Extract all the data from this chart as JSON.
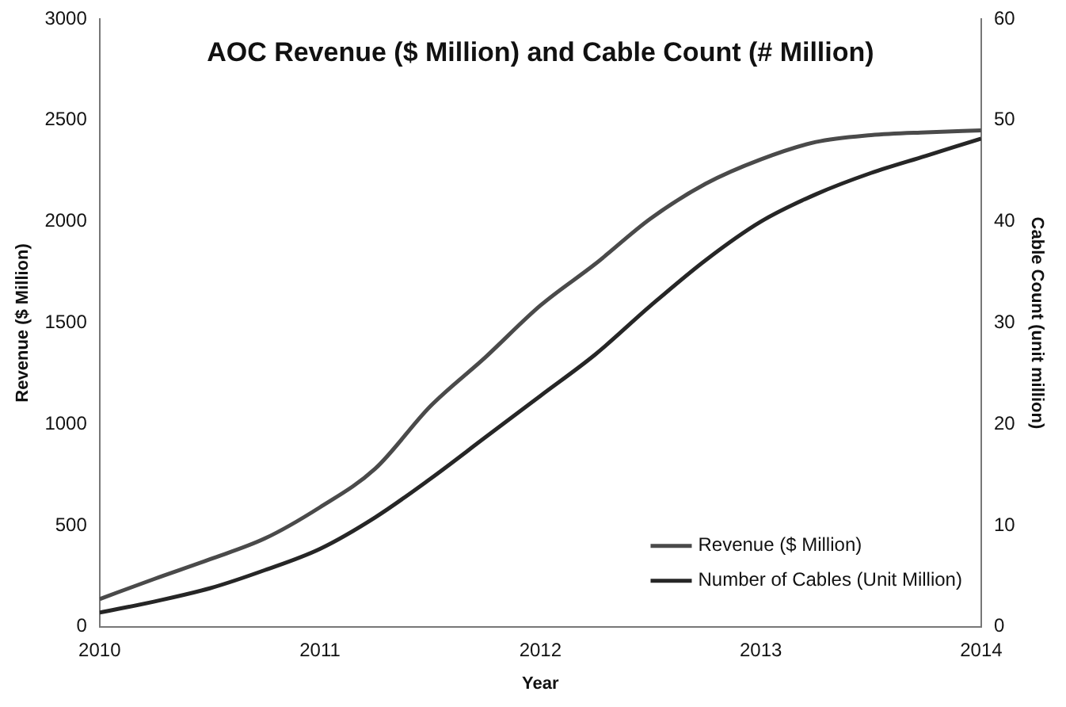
{
  "chart_data": {
    "type": "line",
    "title": "AOC Revenue ($ Million) and Cable Count (# Million)",
    "xlabel": "Year",
    "ylabel": "Revenue ($ Million)",
    "y2label": "Cable Count (unit million)",
    "x": [
      2010,
      2010.25,
      2010.5,
      2010.75,
      2011,
      2011.25,
      2011.5,
      2011.75,
      2012,
      2012.25,
      2012.5,
      2012.75,
      2013,
      2013.25,
      2013.5,
      2013.75,
      2014
    ],
    "series": [
      {
        "name": "Revenue ($ Million)",
        "color": "#4a4a4a",
        "values": [
          137,
          237,
          333,
          436,
          590,
          780,
          1088,
          1330,
          1586,
          1792,
          2015,
          2187,
          2307,
          2393,
          2427,
          2441,
          2450
        ]
      },
      {
        "name": "Number of Cables (Unit Million)",
        "color": "#262626",
        "axis": "y2",
        "values": [
          1.4,
          2.5,
          3.8,
          5.6,
          7.7,
          10.8,
          14.6,
          18.7,
          22.8,
          26.9,
          31.7,
          36.2,
          40,
          42.7,
          44.8,
          46.5,
          48.2
        ]
      }
    ],
    "xlim": [
      2010,
      2014
    ],
    "xticks": [
      2010,
      2011,
      2012,
      2013,
      2014
    ],
    "ylim": [
      0,
      3000
    ],
    "yticks": [
      0,
      500,
      1000,
      1500,
      2000,
      2500,
      3000
    ],
    "y2lim": [
      0,
      60
    ],
    "y2ticks": [
      0,
      10,
      20,
      30,
      40,
      50,
      60
    ],
    "grid": false,
    "legend": "bottom right",
    "marker": "none",
    "line_style": "solid"
  }
}
